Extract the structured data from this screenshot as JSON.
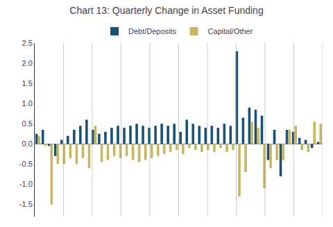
{
  "chart_data": {
    "type": "bar",
    "title": "Chart 13: Quarterly Change in Asset Funding",
    "categories": [
      null,
      null,
      null,
      null,
      null,
      null,
      null,
      null,
      null,
      null,
      null,
      null,
      null,
      null,
      null,
      null,
      null,
      null,
      null,
      null,
      null,
      null,
      null,
      null,
      null,
      null,
      null,
      null,
      null,
      null,
      null,
      null,
      null,
      null,
      null,
      null,
      null,
      null,
      null,
      null,
      null,
      null,
      null,
      null,
      null,
      null
    ],
    "series": [
      {
        "name": "Debt/Deposits",
        "color": "#1a5276",
        "values": [
          0.25,
          0.35,
          -0.05,
          -0.3,
          0.1,
          0.2,
          0.35,
          0.45,
          0.6,
          0.35,
          0.25,
          0.3,
          0.4,
          0.45,
          0.4,
          0.45,
          0.5,
          0.45,
          0.4,
          0.45,
          0.5,
          0.45,
          0.5,
          0.3,
          0.6,
          0.5,
          0.45,
          0.4,
          0.45,
          0.4,
          0.5,
          0.45,
          2.3,
          0.65,
          0.9,
          0.85,
          0.7,
          -0.4,
          0.35,
          -0.8,
          0.35,
          0.3,
          0.15,
          0.1,
          -0.1,
          0.05
        ]
      },
      {
        "name": "Capital/Other",
        "color": "#c8b560",
        "values": [
          0.2,
          -0.05,
          -1.5,
          -0.5,
          -0.5,
          -0.35,
          -0.5,
          -0.35,
          -0.6,
          0.45,
          -0.45,
          -0.4,
          -0.3,
          -0.35,
          -0.3,
          -0.4,
          -0.45,
          -0.4,
          -0.35,
          -0.3,
          -0.25,
          -0.2,
          -0.15,
          -0.25,
          -0.1,
          -0.15,
          -0.2,
          -0.15,
          -0.2,
          -0.1,
          -0.2,
          -0.15,
          -1.3,
          -0.7,
          0.55,
          0.4,
          -1.1,
          -0.6,
          -0.4,
          -0.4,
          0.35,
          0.45,
          -0.15,
          -0.2,
          0.55,
          0.5
        ]
      }
    ],
    "ylim": [
      -1.8,
      2.5
    ],
    "yticks": [
      -1.5,
      {
        "value": -1,
        "label": "-1.0"
      },
      -0.5,
      {
        "value": 0,
        "label": "0.0"
      },
      0.5,
      {
        "value": 1,
        "label": "1.0"
      },
      1.5,
      {
        "value": 2,
        "label": "2.0"
      },
      2.5
    ],
    "grid": true,
    "legend": "top",
    "tick_labels": "y"
  }
}
